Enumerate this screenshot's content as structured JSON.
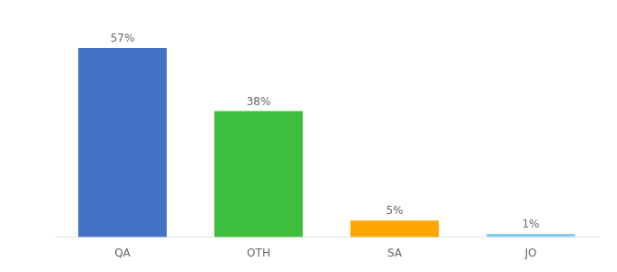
{
  "chart_data": {
    "type": "bar",
    "categories": [
      "QA",
      "OTH",
      "SA",
      "JO"
    ],
    "values": [
      57,
      38,
      5,
      1
    ],
    "value_labels": [
      "57%",
      "38%",
      "5%",
      "1%"
    ],
    "colors": [
      "#4472C4",
      "#3DBF3D",
      "#FFA500",
      "#87CEEB"
    ],
    "data_labels": true,
    "ylim": [
      0,
      66
    ],
    "tick_labels": "x",
    "grid": false
  }
}
